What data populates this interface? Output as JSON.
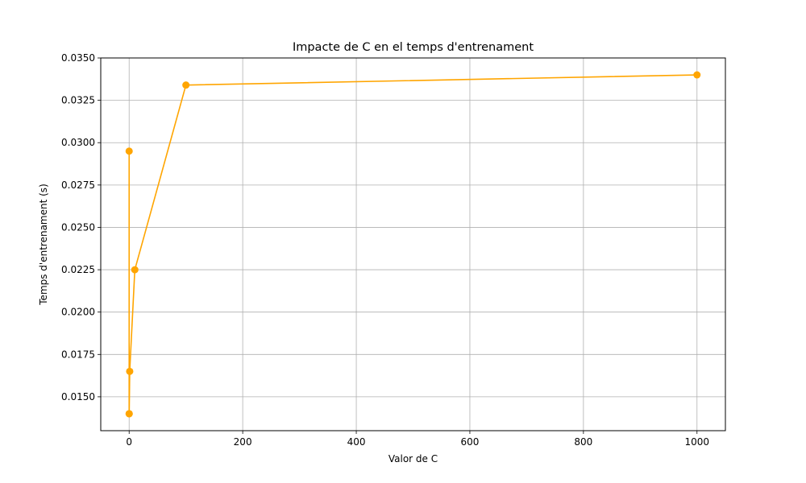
{
  "chart_data": {
    "type": "line",
    "title": "Impacte de C en el temps d'entrenament",
    "xlabel": "Valor de C",
    "ylabel": "Temps d'entrenament (s)",
    "xlim": [
      -50,
      1050
    ],
    "ylim": [
      0.013,
      0.035
    ],
    "x_ticks": [
      0,
      200,
      400,
      600,
      800,
      1000
    ],
    "y_ticks": [
      0.015,
      0.0175,
      0.02,
      0.0225,
      0.025,
      0.0275,
      0.03,
      0.0325,
      0.035
    ],
    "x_tick_labels": [
      "0",
      "200",
      "400",
      "600",
      "800",
      "1000"
    ],
    "y_tick_labels": [
      "0.0150",
      "0.0175",
      "0.0200",
      "0.0225",
      "0.0250",
      "0.0275",
      "0.0300",
      "0.0325",
      "0.0350"
    ],
    "grid": true,
    "series": [
      {
        "color": "#ffa500",
        "marker": "circle",
        "x": [
          0.001,
          0.01,
          0.1,
          1,
          10,
          100,
          1000
        ],
        "y": [
          0.0295,
          0.014,
          0.014,
          0.0165,
          0.0225,
          0.0334,
          0.034
        ]
      }
    ]
  }
}
